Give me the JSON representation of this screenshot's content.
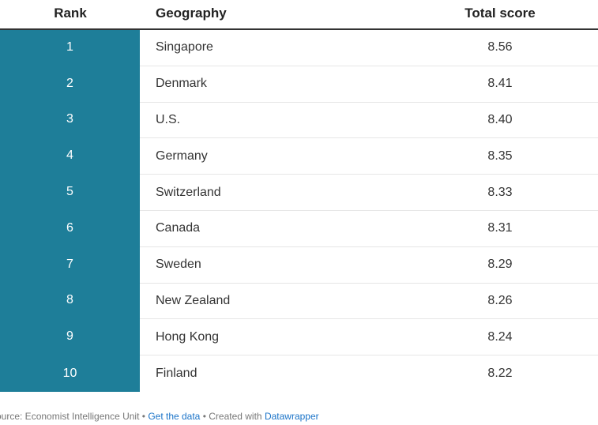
{
  "chart_data": {
    "type": "table",
    "columns": [
      "Rank",
      "Geography",
      "Total score"
    ],
    "rows": [
      {
        "rank": "1",
        "geography": "Singapore",
        "score": "8.56"
      },
      {
        "rank": "2",
        "geography": "Denmark",
        "score": "8.41"
      },
      {
        "rank": "3",
        "geography": "U.S.",
        "score": "8.40"
      },
      {
        "rank": "4",
        "geography": "Germany",
        "score": "8.35"
      },
      {
        "rank": "5",
        "geography": "Switzerland",
        "score": "8.33"
      },
      {
        "rank": "6",
        "geography": "Canada",
        "score": "8.31"
      },
      {
        "rank": "7",
        "geography": "Sweden",
        "score": "8.29"
      },
      {
        "rank": "8",
        "geography": "New Zealand",
        "score": "8.26"
      },
      {
        "rank": "9",
        "geography": "Hong Kong",
        "score": "8.24"
      },
      {
        "rank": "10",
        "geography": "Finland",
        "score": "8.22"
      }
    ]
  },
  "footer": {
    "source_text": "ource: Economist Intelligence Unit",
    "separator": " • ",
    "get_data_link": "Get the data",
    "created_with": "Created with ",
    "datawrapper_link": "Datawrapper"
  },
  "colors": {
    "rank_column": "#1e7e99",
    "link": "#1a73c8"
  }
}
